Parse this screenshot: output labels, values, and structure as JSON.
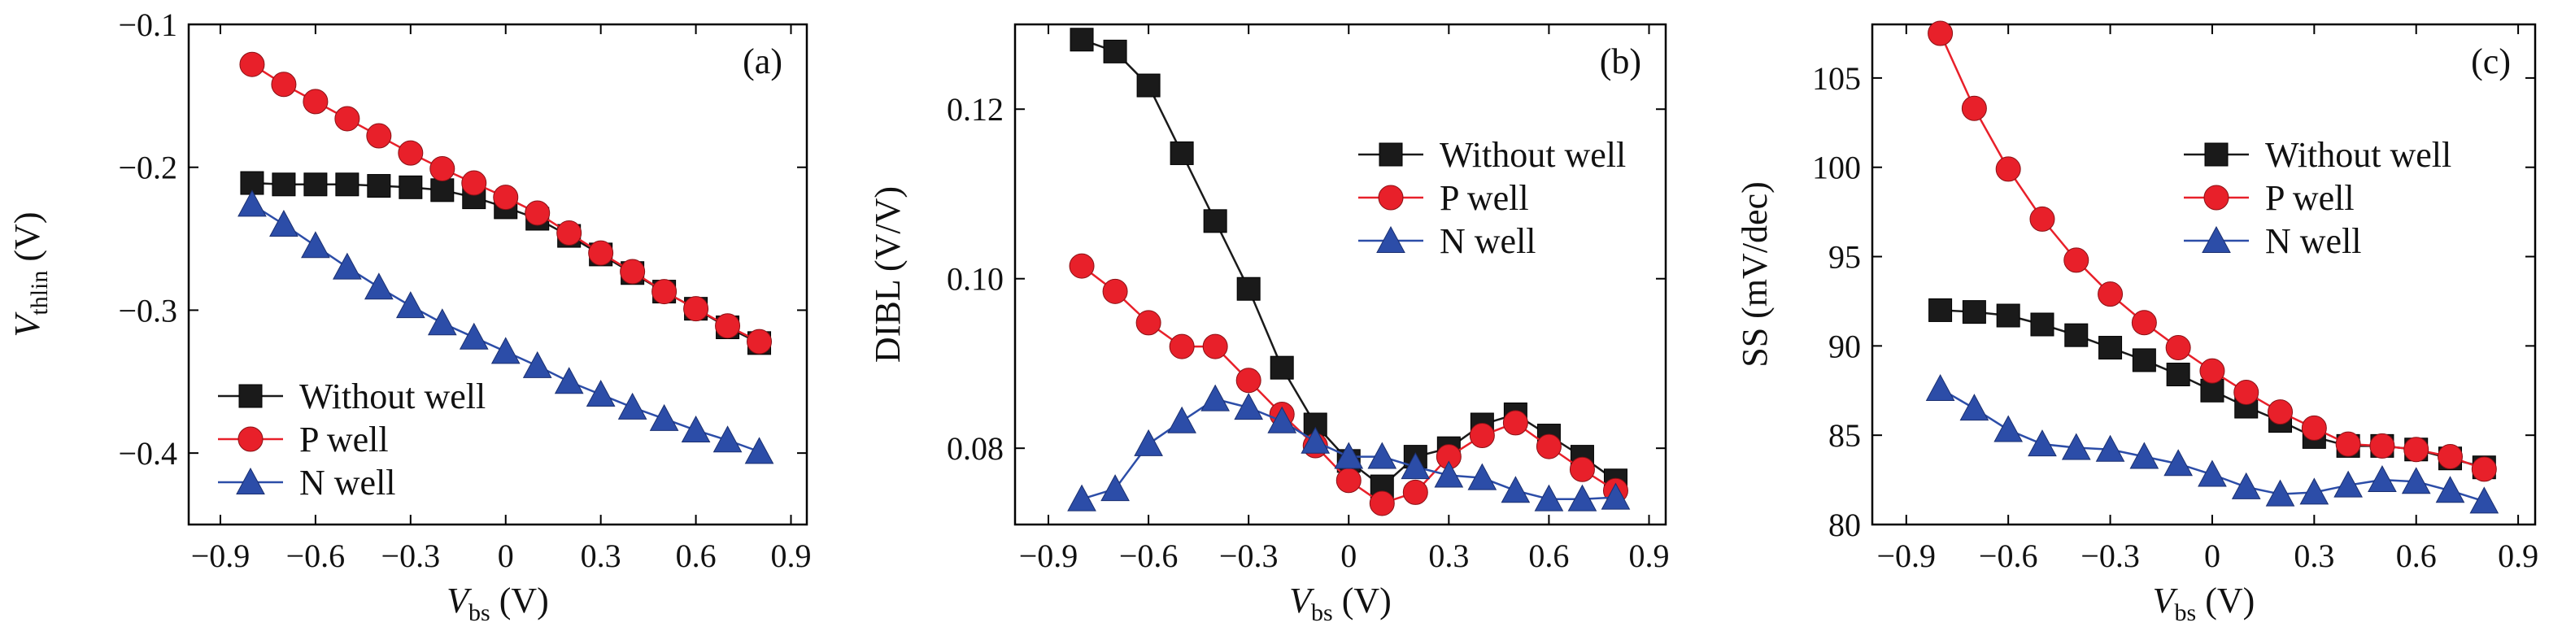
{
  "chart_data": [
    {
      "type": "line",
      "panel_label": "(a)",
      "xlabel": {
        "main": "V",
        "sub": "bs",
        "unit": " (V)"
      },
      "ylabel": {
        "main": "V",
        "sub": "thlin",
        "unit": " (V)"
      },
      "xlim": [
        -1.0,
        0.95
      ],
      "ylim": [
        -0.45,
        -0.1
      ],
      "xticks": [
        -0.9,
        -0.6,
        -0.3,
        0,
        0.3,
        0.6,
        0.9
      ],
      "xtick_labels": [
        "−0.9",
        "−0.6",
        "−0.3",
        "0",
        "0.3",
        "0.6",
        "0.9"
      ],
      "yticks": [
        -0.4,
        -0.3,
        -0.2,
        -0.1
      ],
      "ytick_labels": [
        "−0.4",
        "−0.3",
        "−0.2",
        "−0.1"
      ],
      "grid": false,
      "legend_position": "bottom-left",
      "x": [
        -0.8,
        -0.7,
        -0.6,
        -0.5,
        -0.4,
        -0.3,
        -0.2,
        -0.1,
        0,
        0.1,
        0.2,
        0.3,
        0.4,
        0.5,
        0.6,
        0.7,
        0.8
      ],
      "series": [
        {
          "name": "Without well",
          "marker": "square",
          "color": "#1a1a1a",
          "values": [
            -0.211,
            -0.212,
            -0.212,
            -0.212,
            -0.213,
            -0.214,
            -0.216,
            -0.221,
            -0.228,
            -0.236,
            -0.248,
            -0.261,
            -0.274,
            -0.287,
            -0.299,
            -0.312,
            -0.323
          ]
        },
        {
          "name": "P well",
          "marker": "circle",
          "color": "#e8202a",
          "values": [
            -0.128,
            -0.142,
            -0.154,
            -0.166,
            -0.178,
            -0.19,
            -0.201,
            -0.211,
            -0.221,
            -0.232,
            -0.246,
            -0.26,
            -0.273,
            -0.287,
            -0.299,
            -0.311,
            -0.322
          ]
        },
        {
          "name": "N well",
          "marker": "triangle",
          "color": "#2c4da8",
          "values": [
            -0.226,
            -0.24,
            -0.255,
            -0.27,
            -0.284,
            -0.297,
            -0.309,
            -0.319,
            -0.329,
            -0.339,
            -0.35,
            -0.359,
            -0.368,
            -0.376,
            -0.384,
            -0.391,
            -0.399
          ]
        }
      ]
    },
    {
      "type": "line",
      "panel_label": "(b)",
      "xlabel": {
        "main": "V",
        "sub": "bs",
        "unit": " (V)"
      },
      "ylabel": {
        "main": "DIBL (V/V)",
        "sub": "",
        "unit": ""
      },
      "xlim": [
        -1.0,
        0.95
      ],
      "ylim": [
        0.071,
        0.13
      ],
      "xticks": [
        -0.9,
        -0.6,
        -0.3,
        0,
        0.3,
        0.6,
        0.9
      ],
      "xtick_labels": [
        "−0.9",
        "−0.6",
        "−0.3",
        "0",
        "0.3",
        "0.6",
        "0.9"
      ],
      "yticks": [
        0.08,
        0.1,
        0.12
      ],
      "ytick_labels": [
        "0.08",
        "0.10",
        "0.12"
      ],
      "grid": false,
      "legend_position": "top-right",
      "x": [
        -0.8,
        -0.7,
        -0.6,
        -0.5,
        -0.4,
        -0.3,
        -0.2,
        -0.1,
        0,
        0.1,
        0.2,
        0.3,
        0.4,
        0.5,
        0.6,
        0.7,
        0.8
      ],
      "series": [
        {
          "name": "Without well",
          "marker": "square",
          "color": "#1a1a1a",
          "values": [
            0.1282,
            0.1268,
            0.1228,
            0.1148,
            0.1068,
            0.0988,
            0.0895,
            0.0828,
            0.0785,
            0.0755,
            0.079,
            0.08,
            0.0828,
            0.084,
            0.0815,
            0.079,
            0.0762
          ]
        },
        {
          "name": "P well",
          "marker": "circle",
          "color": "#e8202a",
          "values": [
            0.1015,
            0.0985,
            0.0948,
            0.092,
            0.092,
            0.088,
            0.084,
            0.0803,
            0.0762,
            0.0735,
            0.0748,
            0.079,
            0.0815,
            0.083,
            0.0802,
            0.0775,
            0.075
          ]
        },
        {
          "name": "N well",
          "marker": "triangle",
          "color": "#2c4da8",
          "values": [
            0.074,
            0.0752,
            0.0805,
            0.0832,
            0.0858,
            0.0848,
            0.0832,
            0.0808,
            0.079,
            0.079,
            0.0778,
            0.0768,
            0.0765,
            0.075,
            0.074,
            0.074,
            0.0742
          ]
        }
      ]
    },
    {
      "type": "line",
      "panel_label": "(c)",
      "xlabel": {
        "main": "V",
        "sub": "bs",
        "unit": " (V)"
      },
      "ylabel": {
        "main": "SS (mV/dec)",
        "sub": "",
        "unit": ""
      },
      "xlim": [
        -1.0,
        0.95
      ],
      "ylim": [
        80,
        108
      ],
      "xticks": [
        -0.9,
        -0.6,
        -0.3,
        0,
        0.3,
        0.6,
        0.9
      ],
      "xtick_labels": [
        "−0.9",
        "−0.6",
        "−0.3",
        "0",
        "0.3",
        "0.6",
        "0.9"
      ],
      "yticks": [
        80,
        85,
        90,
        95,
        100,
        105
      ],
      "ytick_labels": [
        "80",
        "85",
        "90",
        "95",
        "100",
        "105"
      ],
      "grid": false,
      "legend_position": "top-right",
      "x": [
        -0.8,
        -0.7,
        -0.6,
        -0.5,
        -0.4,
        -0.3,
        -0.2,
        -0.1,
        0,
        0.1,
        0.2,
        0.3,
        0.4,
        0.5,
        0.6,
        0.7,
        0.8
      ],
      "series": [
        {
          "name": "Without well",
          "marker": "square",
          "color": "#1a1a1a",
          "values": [
            92.0,
            91.9,
            91.7,
            91.2,
            90.6,
            89.9,
            89.2,
            88.4,
            87.5,
            86.6,
            85.8,
            84.9,
            84.4,
            84.4,
            84.2,
            83.7,
            83.2
          ]
        },
        {
          "name": "P well",
          "marker": "circle",
          "color": "#e8202a",
          "values": [
            107.5,
            103.3,
            99.9,
            97.1,
            94.8,
            92.9,
            91.3,
            89.9,
            88.6,
            87.4,
            86.3,
            85.4,
            84.5,
            84.4,
            84.2,
            83.8,
            83.1
          ]
        },
        {
          "name": "N well",
          "marker": "triangle",
          "color": "#2c4da8",
          "values": [
            87.6,
            86.5,
            85.3,
            84.5,
            84.3,
            84.2,
            83.8,
            83.4,
            82.8,
            82.1,
            81.7,
            81.8,
            82.2,
            82.5,
            82.4,
            81.9,
            81.3
          ]
        }
      ]
    }
  ]
}
